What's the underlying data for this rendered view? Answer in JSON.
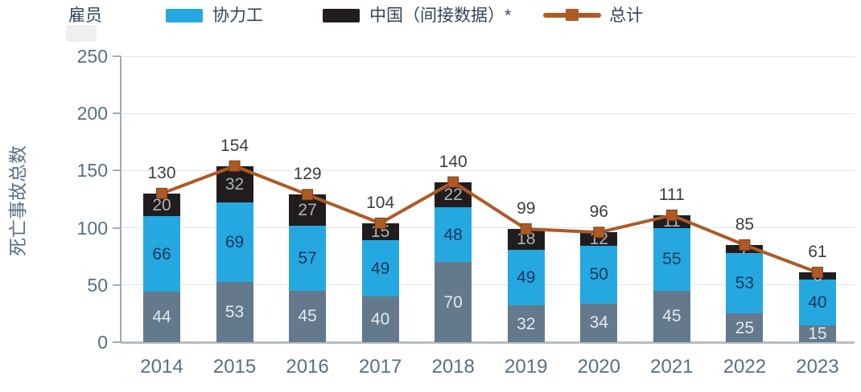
{
  "colors": {
    "employee_bar": "#64798b",
    "contractor_bar": "#25a8e0",
    "china_bar": "#211d1e",
    "total_line": "#ad5a26",
    "marker_border": "#7e3f16",
    "grid": "#e2e6e9",
    "axis_line": "#9facb8",
    "axis_text": "#567089",
    "legend_text": "#30455c",
    "total_label": "#3d3d3d",
    "label_on_gray": "#e5eaee",
    "label_on_blue": "#17365a",
    "label_on_black": "#adb2b6"
  },
  "legend": {
    "items": [
      {
        "label": "雇员",
        "swatch": "none"
      },
      {
        "label": "协力工",
        "swatch": "square",
        "color": "#25a8e0"
      },
      {
        "label": "中国（间接数据）*",
        "swatch": "square",
        "color": "#211d1e"
      },
      {
        "label": "总计",
        "swatch": "line-marker",
        "color": "#ad5a26"
      }
    ]
  },
  "chart_data": {
    "type": "bar",
    "subtype": "stacked-bars-with-total-line",
    "title": "",
    "categories": [
      "2014",
      "2015",
      "2016",
      "2017",
      "2018",
      "2019",
      "2020",
      "2021",
      "2022",
      "2023"
    ],
    "series": [
      {
        "name": "雇员",
        "key": "employees",
        "type": "bar",
        "color_key": "employee_bar",
        "label_color_key": "label_on_gray",
        "values": [
          44,
          53,
          45,
          40,
          70,
          32,
          34,
          45,
          25,
          15
        ]
      },
      {
        "name": "协力工",
        "key": "contractors",
        "type": "bar",
        "color_key": "contractor_bar",
        "label_color_key": "label_on_blue",
        "values": [
          66,
          69,
          57,
          49,
          48,
          49,
          50,
          55,
          53,
          40
        ]
      },
      {
        "name": "中国（间接数据）*",
        "key": "china-indirect",
        "type": "bar",
        "color_key": "china_bar",
        "label_color_key": "label_on_black",
        "values": [
          20,
          32,
          27,
          15,
          22,
          18,
          12,
          11,
          7,
          6
        ]
      },
      {
        "name": "总计",
        "key": "total",
        "type": "line",
        "color_key": "total_line",
        "values": [
          130,
          154,
          129,
          104,
          140,
          99,
          96,
          111,
          85,
          61
        ]
      }
    ],
    "xlabel": "",
    "ylabel": "死亡事故总数",
    "ylim": [
      0,
      250
    ],
    "yticks": [
      0,
      50,
      100,
      150,
      200,
      250
    ],
    "grid": "horizontal",
    "legend_position": "top"
  }
}
